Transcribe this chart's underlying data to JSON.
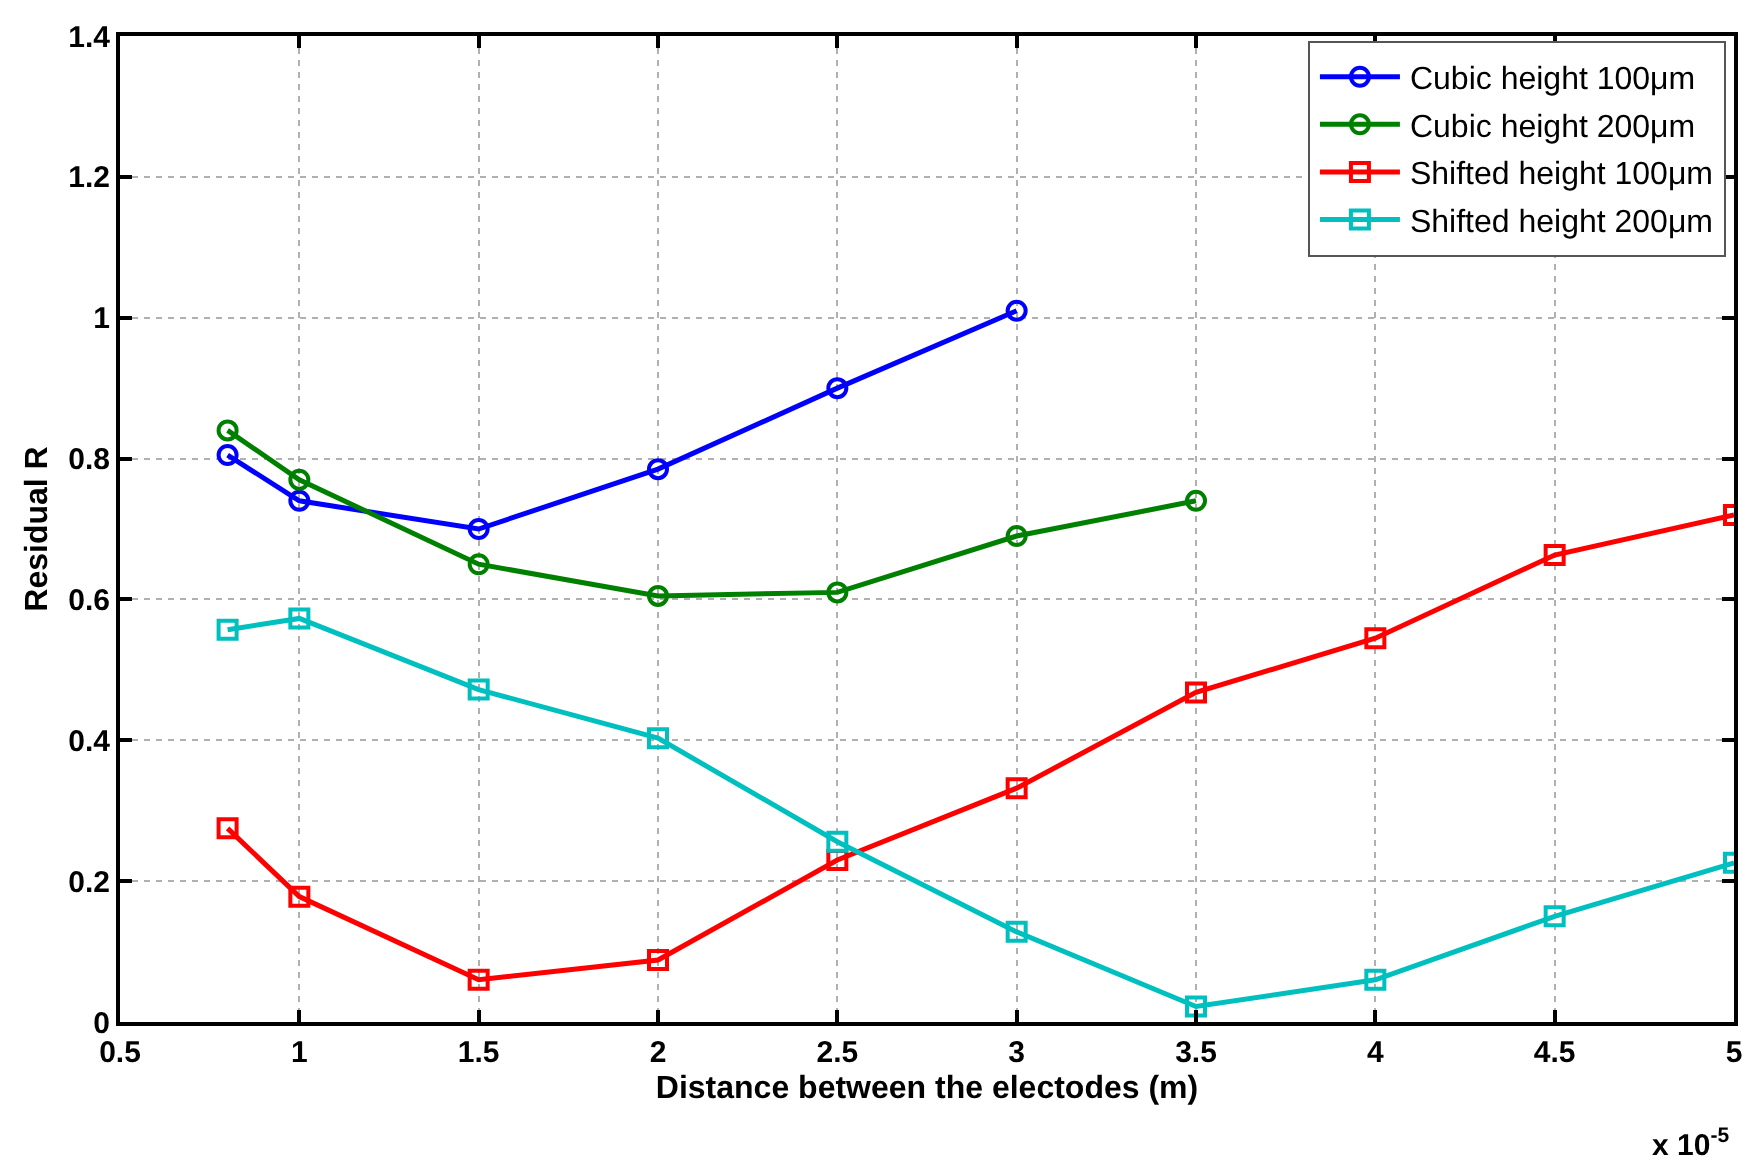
{
  "chart_data": {
    "type": "line",
    "xlabel": "Distance between the electodes (m)",
    "ylabel": "Residual R",
    "x": [
      0.8,
      1,
      1.5,
      2,
      2.5,
      3,
      3.5,
      4,
      4.5,
      5
    ],
    "series": [
      {
        "name": "Cubic height 100μm",
        "color": "#0000ff",
        "marker": "circle",
        "values": [
          0.805,
          0.74,
          0.7,
          0.785,
          0.9,
          1.01,
          null,
          null,
          null,
          null
        ]
      },
      {
        "name": "Cubic height 200μm",
        "color": "#008000",
        "marker": "circle",
        "values": [
          0.84,
          0.77,
          0.65,
          0.605,
          0.61,
          0.69,
          0.74,
          null,
          null,
          null
        ]
      },
      {
        "name": "Shifted height 100μm",
        "color": "#ff0000",
        "marker": "square",
        "values": [
          0.275,
          0.178,
          0.06,
          0.088,
          0.23,
          0.332,
          0.468,
          0.545,
          0.663,
          0.72
        ]
      },
      {
        "name": "Shifted height 200μm",
        "color": "#00bfbf",
        "marker": "square",
        "values": [
          0.557,
          0.573,
          0.472,
          0.403,
          0.256,
          0.128,
          0.022,
          0.06,
          0.15,
          0.226
        ]
      }
    ],
    "xlim": [
      0.5,
      5
    ],
    "xticks": [
      0.5,
      1,
      1.5,
      2,
      2.5,
      3,
      3.5,
      4,
      4.5,
      5
    ],
    "ylim": [
      0,
      1.4
    ],
    "yticks": [
      0,
      0.2,
      0.4,
      0.6,
      0.8,
      1,
      1.2,
      1.4
    ],
    "annotations": [
      "x 10$^{-5}$"
    ],
    "grid": true,
    "legend": "top right",
    "line_style": "solid"
  }
}
